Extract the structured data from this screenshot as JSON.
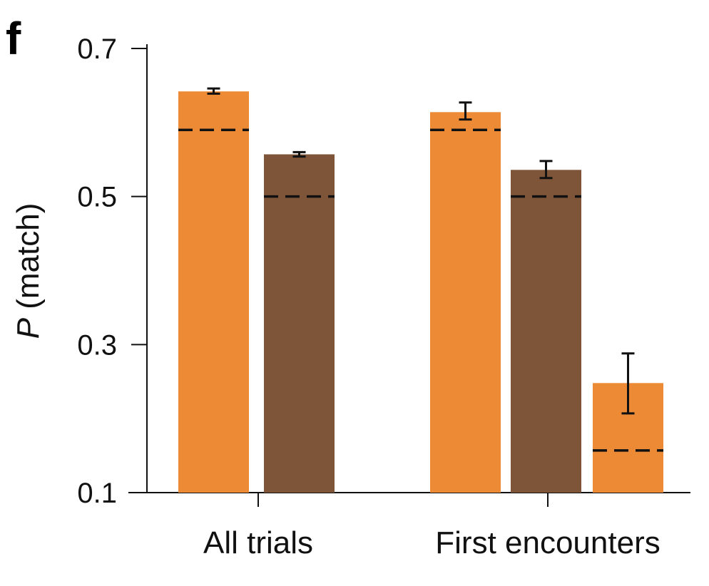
{
  "panel_label": "f",
  "chart_data": {
    "type": "bar",
    "ylabel_italic": "P",
    "ylabel_rest": " (match)",
    "ylim": [
      0.1,
      0.7
    ],
    "yticks": [
      0.1,
      0.3,
      0.5,
      0.7
    ],
    "ytick_labels": [
      "0.1",
      "0.3",
      "0.5",
      "0.7"
    ],
    "grid": false,
    "groups": [
      {
        "label": "All trials",
        "bars": [
          {
            "value": 0.642,
            "err": [
              0.639,
              0.646
            ],
            "chance": 0.59,
            "color": "#ED8A35"
          },
          {
            "value": 0.557,
            "err": [
              0.554,
              0.56
            ],
            "chance": 0.5,
            "color": "#7F5539"
          }
        ]
      },
      {
        "label": "First encounters",
        "bars": [
          {
            "value": 0.614,
            "err": [
              0.604,
              0.627
            ],
            "chance": 0.59,
            "color": "#ED8A35"
          },
          {
            "value": 0.536,
            "err": [
              0.525,
              0.548
            ],
            "chance": 0.5,
            "color": "#7F5539"
          },
          {
            "value": 0.248,
            "err": [
              0.207,
              0.288
            ],
            "chance": 0.157,
            "color": "#ED8A35"
          }
        ]
      }
    ]
  }
}
